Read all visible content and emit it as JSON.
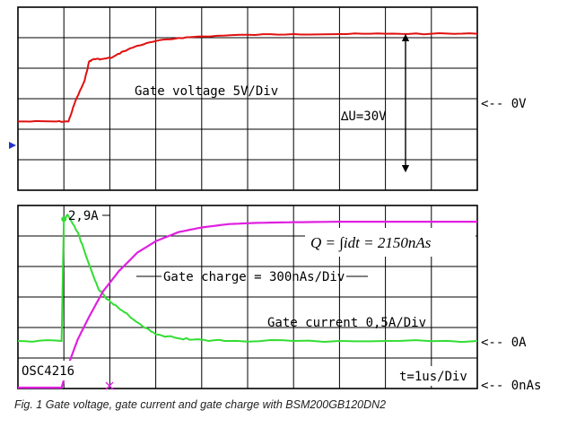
{
  "chart_data": [
    {
      "type": "line",
      "panel": "top",
      "grid": true,
      "series": [
        {
          "name": "Gate voltage 5V/Div",
          "color": "#e01010",
          "x": [
            0.0,
            0.8,
            1.1,
            1.25,
            1.45,
            1.55,
            1.65,
            1.85,
            2.05,
            2.3,
            2.6,
            3.0,
            3.5,
            4.0,
            5.0,
            6.0,
            7.0,
            8.0,
            9.0,
            10.0
          ],
          "y": [
            -1.0,
            -1.0,
            -1.0,
            0.3,
            1.6,
            2.85,
            3.0,
            3.0,
            3.1,
            3.5,
            3.85,
            4.15,
            4.35,
            4.45,
            4.55,
            4.6,
            4.6,
            4.62,
            4.62,
            4.62
          ]
        }
      ],
      "annotations": {
        "trace_label": "Gate voltage 5V/Div",
        "delta_label": "∆U=30V",
        "zero_ref": "<-- 0V"
      },
      "marker_color": "#2233cc"
    },
    {
      "type": "line",
      "panel": "bottom",
      "grid": true,
      "series": [
        {
          "name": "Gate current 0,5A/Div",
          "color": "#33dd33",
          "x": [
            0.0,
            0.95,
            1.0,
            1.08,
            1.3,
            1.5,
            1.75,
            1.95,
            2.15,
            2.4,
            2.7,
            3.0,
            3.4,
            3.8,
            4.5,
            6.0,
            8.0,
            10.0
          ],
          "y": [
            0.0,
            0.0,
            2.8,
            2.9,
            2.5,
            1.9,
            1.2,
            0.95,
            0.8,
            0.6,
            0.35,
            0.15,
            0.08,
            0.03,
            0.0,
            0.0,
            0.0,
            0.0
          ]
        },
        {
          "name": "Gate charge = 300nAs/Div",
          "color": "#e020e0",
          "x": [
            0.0,
            0.95,
            1.1,
            1.3,
            1.55,
            1.85,
            2.2,
            2.6,
            3.0,
            3.5,
            4.0,
            4.6,
            5.2,
            6.0,
            7.0,
            8.0,
            9.0,
            10.0
          ],
          "y": [
            0.0,
            0.0,
            1.0,
            2.1,
            3.1,
            4.2,
            5.1,
            5.9,
            6.4,
            6.8,
            7.0,
            7.15,
            7.2,
            7.23,
            7.25,
            7.25,
            7.25,
            7.25
          ]
        }
      ],
      "annotations": {
        "peak_label": "2,9A",
        "charge_label": "Gate charge = 300nAs/Div",
        "current_label": "Gate current 0,5A/Div",
        "equation": "Q = ∫idt = 2150nAs",
        "device_label": "OSC4216",
        "timebase": "t=1us/Div",
        "zero_current_ref": "<-- 0A",
        "zero_charge_ref": "<-- 0nAs"
      }
    }
  ],
  "caption": "Fig. 1   Gate voltage, gate current and gate charge with BSM200GB120DN2"
}
